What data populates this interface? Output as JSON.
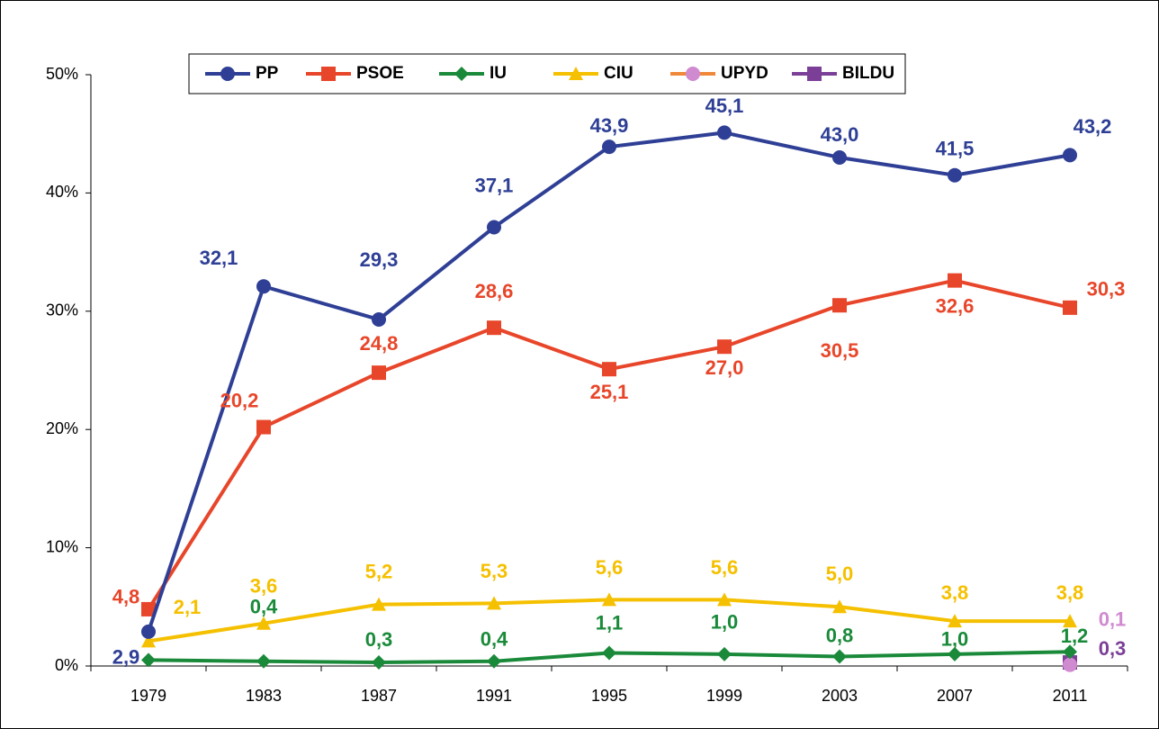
{
  "chart_data": {
    "type": "line",
    "categories": [
      "1979",
      "1983",
      "1987",
      "1991",
      "1995",
      "1999",
      "2003",
      "2007",
      "2011"
    ],
    "series": [
      {
        "name": "PP",
        "color": "#2e3f95",
        "values": [
          2.9,
          32.1,
          29.3,
          37.1,
          43.9,
          45.1,
          43.0,
          41.5,
          43.2
        ],
        "value_labels": [
          "2,9",
          "32,1",
          "29,3",
          "37,1",
          "43,9",
          "45,1",
          "43,0",
          "41,5",
          "43,2"
        ]
      },
      {
        "name": "PSOE",
        "color": "#e8462a",
        "values": [
          4.8,
          20.2,
          24.8,
          28.6,
          25.1,
          27.0,
          30.5,
          32.6,
          30.3
        ],
        "value_labels": [
          "4,8",
          "20,2",
          "24,8",
          "28,6",
          "25,1",
          "27,0",
          "30,5",
          "32,6",
          "30,3"
        ]
      },
      {
        "name": "IU",
        "color": "#1a8a3a",
        "values": [
          0.5,
          0.4,
          0.3,
          0.4,
          1.1,
          1.0,
          0.8,
          1.0,
          1.2
        ],
        "value_labels": [
          null,
          "0,4",
          "0,3",
          "0,4",
          "1,1",
          "1,0",
          "0,8",
          "1,0",
          "1,2"
        ]
      },
      {
        "name": "CIU",
        "color": "#f5c000",
        "values": [
          2.1,
          3.6,
          5.2,
          5.3,
          5.6,
          5.6,
          5.0,
          3.8,
          3.8
        ],
        "value_labels": [
          "2,1",
          "3,6",
          "5,2",
          "5,3",
          "5,6",
          "5,6",
          "5,0",
          "3,8",
          "3,8"
        ]
      },
      {
        "name": "UPYD",
        "color": "#d08ad0",
        "values": [
          null,
          null,
          null,
          null,
          null,
          null,
          null,
          null,
          0.1
        ],
        "value_labels": [
          null,
          null,
          null,
          null,
          null,
          null,
          null,
          null,
          "0,1"
        ]
      },
      {
        "name": "BILDU",
        "color": "#7b3f98",
        "values": [
          null,
          null,
          null,
          null,
          null,
          null,
          null,
          null,
          0.3
        ],
        "value_labels": [
          null,
          null,
          null,
          null,
          null,
          null,
          null,
          null,
          "0,3"
        ]
      }
    ],
    "ylim": [
      0,
      50
    ],
    "yticks": [
      {
        "value": 0,
        "label": "0%"
      },
      {
        "value": 10,
        "label": "10%"
      },
      {
        "value": 20,
        "label": "20%"
      },
      {
        "value": 30,
        "label": "30%"
      },
      {
        "value": 40,
        "label": "40%"
      },
      {
        "value": 50,
        "label": "50%"
      }
    ],
    "grid": false
  }
}
